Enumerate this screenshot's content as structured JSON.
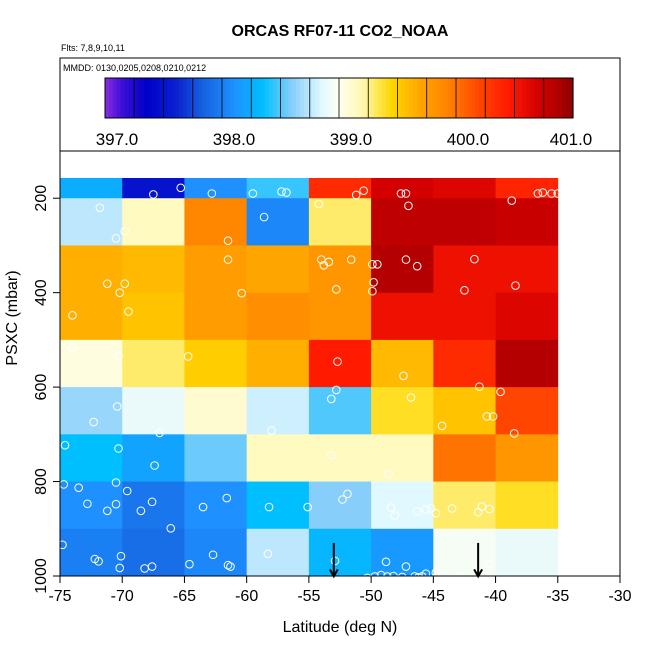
{
  "chart_data": {
    "type": "heatmap",
    "title": "ORCAS RF07-11 CO2_NOAA",
    "subtitle_flights": "Flts: 7,8,9,10,11",
    "subtitle_dates": "MMDD: 0130,0205,0208,0210,0212",
    "xlabel": "Latitude (deg N)",
    "ylabel": "PSXC (mbar)",
    "xlim": [
      -75,
      -30
    ],
    "ylim_top": 100,
    "ylim_bottom": 1000,
    "x_ticks": [
      -75,
      -70,
      -65,
      -60,
      -55,
      -50,
      -45,
      -40,
      -35,
      -30
    ],
    "x_tick_labels": [
      "-75",
      "-70",
      "-65",
      "-60",
      "-55",
      "-50",
      "-45",
      "-40",
      "-35",
      "-30"
    ],
    "y_ticks": [
      200,
      400,
      600,
      800,
      1000
    ],
    "y_tick_labels": [
      "200",
      "400",
      "600",
      "800",
      "1000"
    ],
    "colorbar": {
      "min": 397.0,
      "max": 401.0,
      "ticks": [
        397.0,
        398.0,
        399.0,
        400.0,
        401.0
      ],
      "tick_labels": [
        "397.0",
        "398.0",
        "399.0",
        "400.0",
        "401.0"
      ],
      "stops": [
        [
          397.0,
          "#8a2be2"
        ],
        [
          397.15,
          "#3b0fd8"
        ],
        [
          397.35,
          "#0000c8"
        ],
        [
          397.6,
          "#0a1fd0"
        ],
        [
          397.85,
          "#1565e0"
        ],
        [
          398.1,
          "#1e90ff"
        ],
        [
          398.35,
          "#00bfff"
        ],
        [
          398.6,
          "#87cefa"
        ],
        [
          398.85,
          "#e0f8ff"
        ],
        [
          399.0,
          "#fffff0"
        ],
        [
          399.2,
          "#fff8b0"
        ],
        [
          399.45,
          "#ffd700"
        ],
        [
          399.7,
          "#ffa500"
        ],
        [
          399.95,
          "#ff7f00"
        ],
        [
          400.2,
          "#ff4500"
        ],
        [
          400.45,
          "#ff1a00"
        ],
        [
          400.7,
          "#d40000"
        ],
        [
          400.9,
          "#aa0000"
        ],
        [
          401.0,
          "#8b0000"
        ]
      ]
    },
    "grid_x_edges": [
      -75,
      -70,
      -65,
      -60,
      -55,
      -50,
      -45,
      -40,
      -35
    ],
    "grid_y_edges": [
      100,
      200,
      300,
      400,
      500,
      600,
      700,
      800,
      900,
      1000
    ],
    "cells": [
      [
        398.25,
        397.5,
        398.1,
        398.45,
        400.35,
        400.7,
        400.65,
        400.4
      ],
      [
        398.75,
        399.15,
        399.9,
        398.05,
        399.3,
        400.8,
        400.8,
        400.75
      ],
      [
        399.65,
        399.6,
        399.75,
        399.7,
        399.8,
        400.85,
        400.55,
        400.55
      ],
      [
        399.65,
        399.55,
        399.75,
        399.85,
        399.8,
        400.55,
        400.55,
        400.65
      ],
      [
        399.05,
        399.3,
        399.5,
        399.65,
        400.45,
        399.6,
        400.35,
        400.85
      ],
      [
        398.65,
        398.9,
        399.1,
        398.8,
        398.5,
        399.4,
        399.55,
        400.2
      ],
      [
        398.35,
        398.2,
        398.55,
        399.15,
        399.15,
        399.15,
        400.0,
        399.8
      ],
      [
        398.1,
        397.95,
        398.1,
        398.35,
        398.6,
        398.85,
        399.3,
        399.4
      ],
      [
        398.0,
        397.9,
        398.05,
        398.75,
        398.3,
        398.15,
        398.95,
        398.9
      ]
    ],
    "observations": [
      [
        -71.8,
        220
      ],
      [
        -67.5,
        192
      ],
      [
        -65.3,
        178
      ],
      [
        -62.8,
        190
      ],
      [
        -59.5,
        190
      ],
      [
        -57.2,
        186
      ],
      [
        -56.8,
        188
      ],
      [
        -54.2,
        212
      ],
      [
        -51.2,
        193
      ],
      [
        -50.6,
        184
      ],
      [
        -47.6,
        190
      ],
      [
        -47.2,
        190
      ],
      [
        -47.0,
        216
      ],
      [
        -38.7,
        205
      ],
      [
        -36.6,
        190
      ],
      [
        -36.2,
        188
      ],
      [
        -35.5,
        190
      ],
      [
        -35.0,
        190
      ],
      [
        -70.5,
        285
      ],
      [
        -69.8,
        270
      ],
      [
        -61.5,
        290
      ],
      [
        -58.6,
        240
      ],
      [
        -49.5,
        340
      ],
      [
        -71.2,
        381
      ],
      [
        -70.2,
        400
      ],
      [
        -69.8,
        381
      ],
      [
        -74.0,
        448
      ],
      [
        -69.5,
        440
      ],
      [
        -61.5,
        330
      ],
      [
        -60.4,
        401
      ],
      [
        -54.0,
        330
      ],
      [
        -53.8,
        342
      ],
      [
        -53.4,
        335
      ],
      [
        -52.8,
        393
      ],
      [
        -51.6,
        330
      ],
      [
        -49.9,
        340
      ],
      [
        -49.9,
        397
      ],
      [
        -49.8,
        378
      ],
      [
        -47.2,
        330
      ],
      [
        -46.3,
        344
      ],
      [
        -42.5,
        395
      ],
      [
        -41.7,
        329
      ],
      [
        -38.4,
        385
      ],
      [
        -74.0,
        518
      ],
      [
        -70.3,
        535
      ],
      [
        -64.7,
        535
      ],
      [
        -52.7,
        546
      ],
      [
        -47.4,
        576
      ],
      [
        -46.8,
        622
      ],
      [
        -40.7,
        662
      ],
      [
        -40.2,
        662
      ],
      [
        -72.3,
        674
      ],
      [
        -74.6,
        723
      ],
      [
        -70.4,
        641
      ],
      [
        -67.0,
        697
      ],
      [
        -58.0,
        692
      ],
      [
        -53.2,
        625
      ],
      [
        -52.8,
        606
      ],
      [
        -44.3,
        682
      ],
      [
        -41.3,
        599
      ],
      [
        -39.6,
        610
      ],
      [
        -38.5,
        698
      ],
      [
        -70.3,
        730
      ],
      [
        -70.5,
        802
      ],
      [
        -67.4,
        766
      ],
      [
        -53.2,
        744
      ],
      [
        -48.6,
        784
      ],
      [
        -74.7,
        806
      ],
      [
        -73.5,
        813
      ],
      [
        -72.8,
        847
      ],
      [
        -71.2,
        862
      ],
      [
        -70.5,
        848
      ],
      [
        -69.6,
        820
      ],
      [
        -68.5,
        862
      ],
      [
        -67.6,
        843
      ],
      [
        -66.1,
        899
      ],
      [
        -63.5,
        854
      ],
      [
        -61.6,
        835
      ],
      [
        -58.2,
        854
      ],
      [
        -55.1,
        854
      ],
      [
        -52.3,
        838
      ],
      [
        -51.9,
        826
      ],
      [
        -48.4,
        855
      ],
      [
        -46.3,
        863
      ],
      [
        -45.6,
        859
      ],
      [
        -45.2,
        857
      ],
      [
        -44.8,
        867
      ],
      [
        -43.5,
        857
      ],
      [
        -41.1,
        853
      ],
      [
        -41.4,
        865
      ],
      [
        -40.5,
        858
      ],
      [
        -48.1,
        872
      ],
      [
        -74.8,
        934
      ],
      [
        -72.2,
        964
      ],
      [
        -71.9,
        969
      ],
      [
        -70.1,
        958
      ],
      [
        -70.2,
        983
      ],
      [
        -68.2,
        984
      ],
      [
        -67.6,
        980
      ],
      [
        -64.6,
        975
      ],
      [
        -62.7,
        955
      ],
      [
        -61.5,
        977
      ],
      [
        -61.3,
        980
      ],
      [
        -58.3,
        953
      ],
      [
        -52.9,
        968
      ],
      [
        -50.3,
        1004
      ],
      [
        -49.7,
        1001
      ],
      [
        -49.2,
        998
      ],
      [
        -48.7,
        1001
      ],
      [
        -48.2,
        1000
      ],
      [
        -47.5,
        1002
      ],
      [
        -47.2,
        980
      ],
      [
        -46.5,
        1001
      ],
      [
        -46.2,
        1003
      ],
      [
        -45.9,
        1001
      ],
      [
        -45.6,
        995
      ],
      [
        -44.8,
        993
      ],
      [
        -43.0,
        1002
      ],
      [
        -48.8,
        970
      ],
      [
        -40.5,
        975
      ]
    ],
    "arrows": [
      -53.0,
      -41.4
    ],
    "arrow_top": 930,
    "arrow_bottom": 1005,
    "cells_x_range": [
      -75,
      -35
    ]
  }
}
